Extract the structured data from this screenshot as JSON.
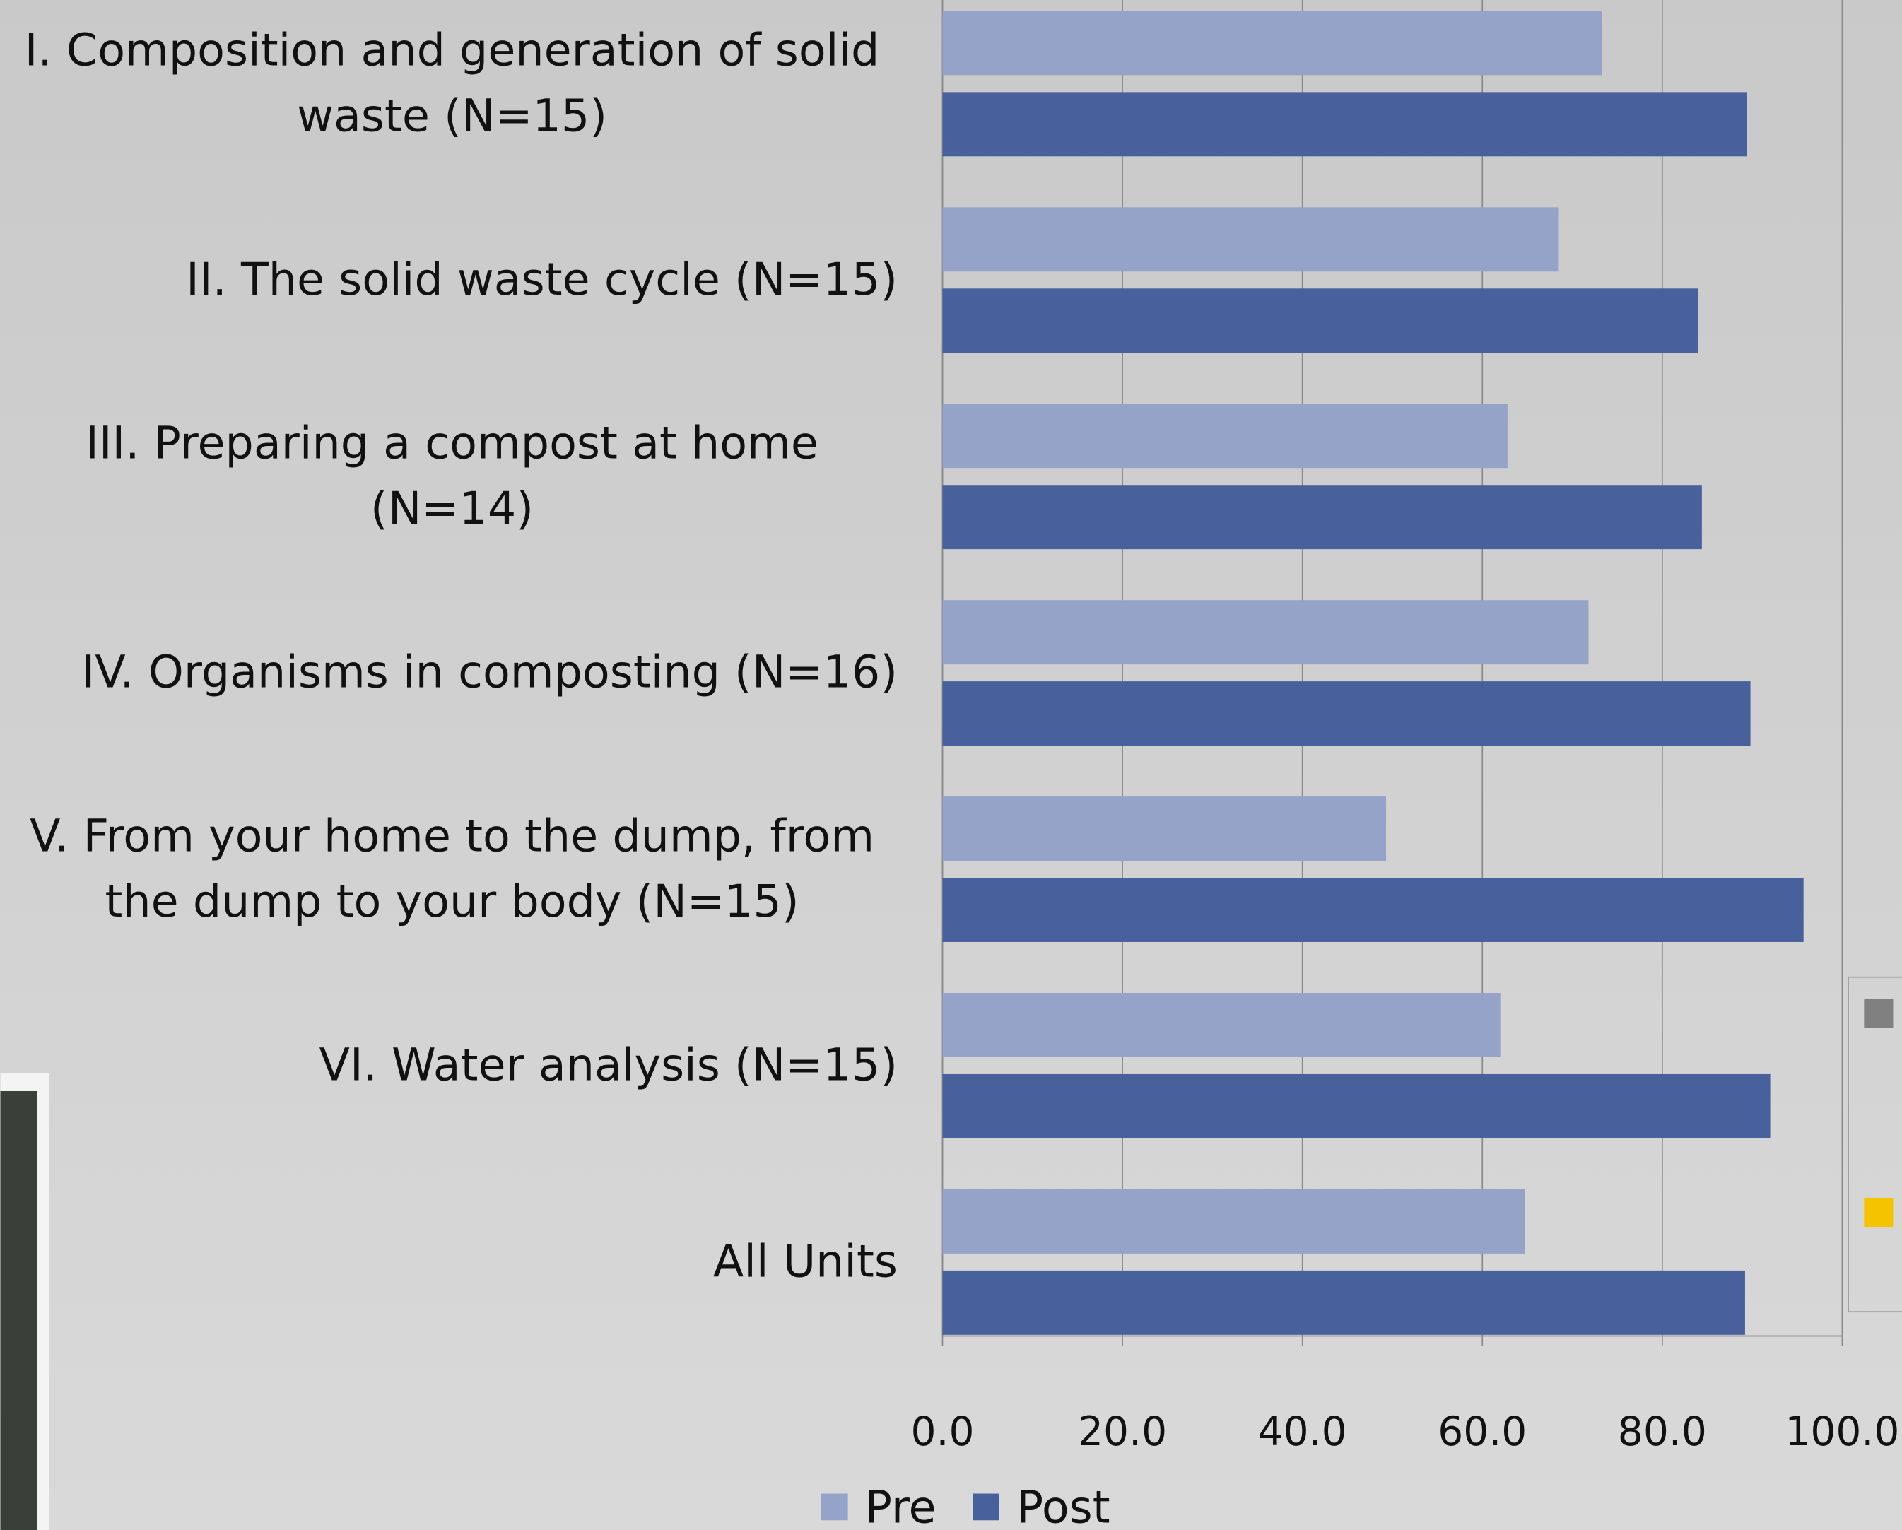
{
  "chart_data": {
    "type": "bar",
    "orientation": "horizontal",
    "categories": [
      "I. Composition and generation of solid waste (N=15)",
      "II. The solid waste cycle (N=15)",
      "III. Preparing a compost at home (N=14)",
      "IV. Organisms in composting (N=16)",
      "V. From your home to the dump, from the dump to your body (N=15)",
      "VI. Water analysis (N=15)",
      "All Units"
    ],
    "series": [
      {
        "name": "Pre",
        "color": "#95a3c9",
        "values": [
          73.3,
          68.5,
          62.8,
          71.8,
          49.3,
          62.0,
          64.7
        ]
      },
      {
        "name": "Post",
        "color": "#48609b",
        "values": [
          89.4,
          84.0,
          84.4,
          89.8,
          95.7,
          92.0,
          89.2
        ]
      }
    ],
    "xlim": [
      0,
      100
    ],
    "xticks": [
      {
        "value": 0,
        "label": "0.0"
      },
      {
        "value": 20,
        "label": "20.0"
      },
      {
        "value": 40,
        "label": "40.0"
      },
      {
        "value": 60,
        "label": "60.0"
      },
      {
        "value": 80,
        "label": "80.0"
      },
      {
        "value": 100,
        "label": "100.0"
      }
    ],
    "grid": true,
    "legend": "bottom"
  }
}
